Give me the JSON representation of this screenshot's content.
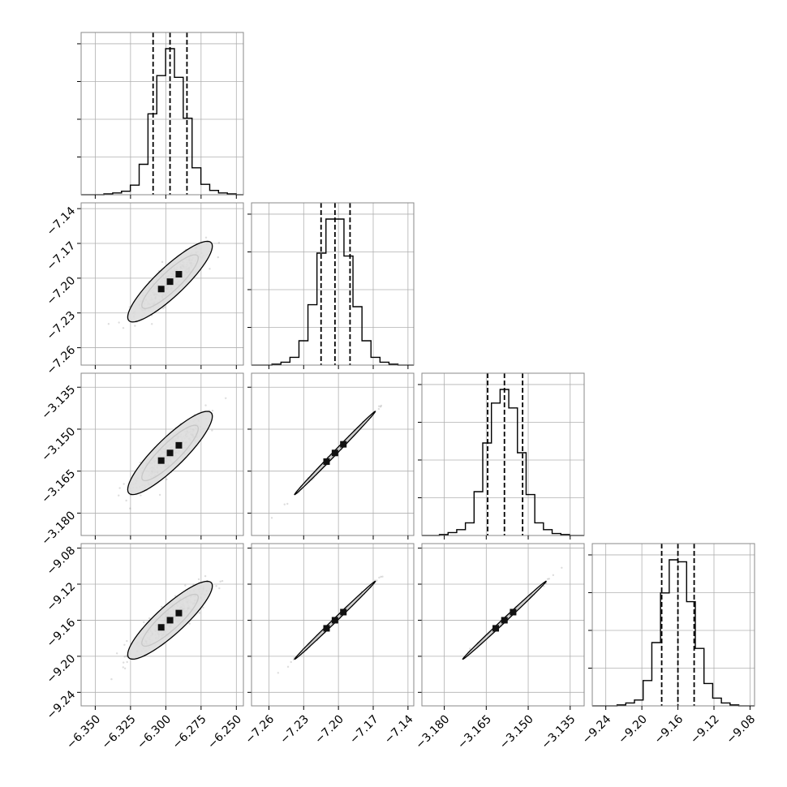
{
  "chart_data": {
    "type": "corner",
    "grid": true,
    "colors": {
      "line": "#000000",
      "grid": "#b0b0b0",
      "frame": "#888888",
      "scatter": "#444444"
    },
    "params": [
      {
        "range": [
          -6.36,
          -6.245
        ],
        "ticks": [
          -6.35,
          -6.325,
          -6.3,
          -6.275,
          -6.25
        ],
        "tick_labels": [
          "−6.350",
          "−6.325",
          "−6.300",
          "−6.275",
          "−6.250"
        ],
        "quantiles": [
          -6.309,
          -6.297,
          -6.285
        ],
        "mean": -6.297,
        "sd": 0.0125
      },
      {
        "range": [
          -7.275,
          -7.135
        ],
        "ticks": [
          -7.26,
          -7.23,
          -7.2,
          -7.17,
          -7.14
        ],
        "tick_labels": [
          "−7.26",
          "−7.23",
          "−7.20",
          "−7.17",
          "−7.14"
        ],
        "quantiles": [
          -7.215,
          -7.203,
          -7.19
        ],
        "mean": -7.203,
        "sd": 0.0145
      },
      {
        "range": [
          -3.188,
          -3.13
        ],
        "ticks": [
          -3.18,
          -3.165,
          -3.15,
          -3.135
        ],
        "tick_labels": [
          "−3.180",
          "−3.165",
          "−3.150",
          "−3.135"
        ],
        "quantiles": [
          -3.1645,
          -3.1585,
          -3.152
        ],
        "mean": -3.1585,
        "sd": 0.0062
      },
      {
        "range": [
          -9.255,
          -9.075
        ],
        "ticks": [
          -9.24,
          -9.2,
          -9.16,
          -9.12,
          -9.08
        ],
        "tick_labels": [
          "−9.24",
          "−9.20",
          "−9.16",
          "−9.12",
          "−9.08"
        ],
        "quantiles": [
          -9.178,
          -9.16,
          -9.142
        ],
        "mean": -9.16,
        "sd": 0.018
      }
    ],
    "histograms": [
      {
        "counts": [
          1,
          2,
          4,
          11,
          35,
          93,
          137,
          168,
          135,
          88,
          31,
          12,
          5,
          2,
          1
        ]
      },
      {
        "counts": [
          1,
          3,
          8,
          25,
          62,
          115,
          150,
          150,
          112,
          60,
          25,
          8,
          3,
          1
        ]
      },
      {
        "counts": [
          1,
          3,
          6,
          13,
          45,
          95,
          136,
          150,
          131,
          85,
          42,
          13,
          6,
          2,
          1
        ]
      },
      {
        "counts": [
          1,
          3,
          6,
          26,
          65,
          116,
          150,
          148,
          107,
          59,
          23,
          8,
          3,
          1
        ]
      }
    ],
    "correlations": [
      {
        "row": 1,
        "col": 0,
        "r": 0.88
      },
      {
        "row": 2,
        "col": 0,
        "r": 0.88
      },
      {
        "row": 2,
        "col": 1,
        "r": 0.998
      },
      {
        "row": 3,
        "col": 0,
        "r": 0.88
      },
      {
        "row": 3,
        "col": 1,
        "r": 0.998
      },
      {
        "row": 3,
        "col": 2,
        "r": 0.998
      }
    ]
  }
}
